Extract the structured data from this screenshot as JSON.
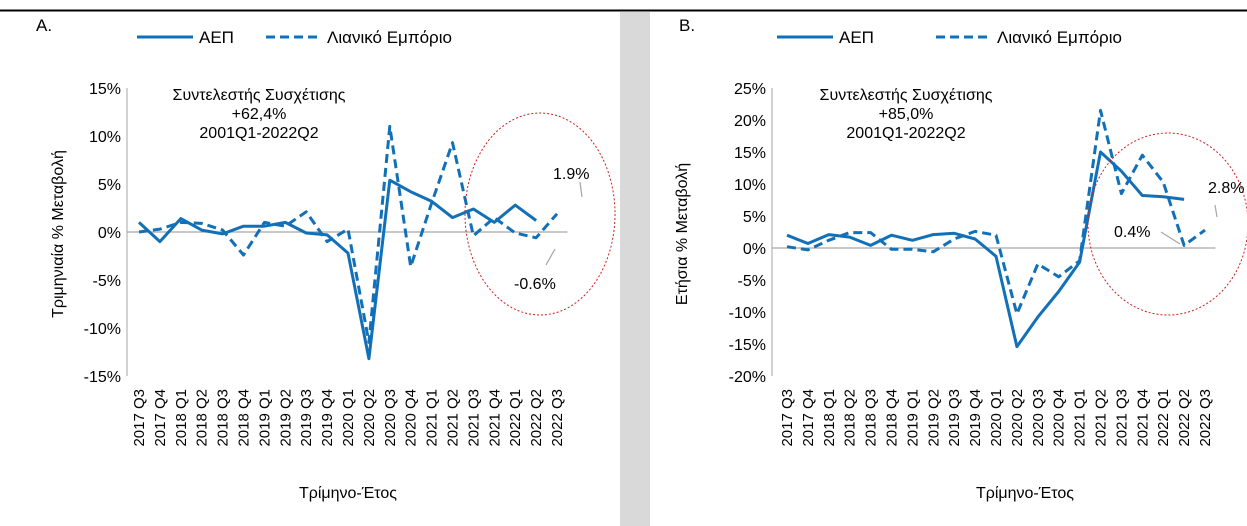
{
  "chart_data": [
    {
      "type": "line",
      "panel_label": "A.",
      "title": "",
      "xlabel": "Τρίμηνο-Έτος",
      "ylabel": "Τριμηνιαία % Μεταβολή",
      "ylim": [
        -15,
        15
      ],
      "yticks": [
        15,
        10,
        5,
        0,
        -5,
        -10,
        -15
      ],
      "ytick_labels": [
        "15%",
        "10%",
        "5%",
        "0%",
        "-5%",
        "-10%",
        "-15%"
      ],
      "categories": [
        "2017 Q3",
        "2017 Q4",
        "2018 Q1",
        "2018 Q2",
        "2018 Q3",
        "2018 Q4",
        "2019 Q1",
        "2019 Q2",
        "2019 Q3",
        "2019 Q4",
        "2020 Q1",
        "2020 Q2",
        "2020 Q3",
        "2020 Q4",
        "2021 Q1",
        "2021 Q2",
        "2021 Q3",
        "2021 Q4",
        "2022 Q1",
        "2022 Q2",
        "2022 Q3"
      ],
      "series": [
        {
          "name": "ΑΕΠ",
          "style": "solid",
          "values": [
            1.0,
            -1.0,
            1.4,
            0.2,
            -0.2,
            0.6,
            0.6,
            1.0,
            -0.1,
            -0.3,
            -2.2,
            -13.2,
            5.4,
            4.2,
            3.2,
            1.5,
            2.4,
            1.0,
            2.8,
            1.2,
            null
          ]
        },
        {
          "name": "Λιανικό Εμπόριο",
          "style": "dashed",
          "values": [
            0.0,
            0.3,
            1.0,
            0.9,
            0.2,
            -2.4,
            1.0,
            0.6,
            2.1,
            -1.0,
            0.3,
            -11.5,
            11.0,
            -3.6,
            3.0,
            9.3,
            -0.4,
            1.5,
            -0.1,
            -0.6,
            1.9
          ]
        }
      ],
      "annotation": {
        "line1": "Συντελεστής Συσχέτισης",
        "line2": "+62,4%",
        "line3": "2001Q1-2022Q2"
      },
      "value_labels": {
        "last": "1.9%",
        "prev": "-0.6%"
      },
      "legend": "top",
      "grid": false
    },
    {
      "type": "line",
      "panel_label": "B.",
      "title": "",
      "xlabel": "Τρίμηνο-Έτος",
      "ylabel": "Ετήσια % Μεταβολή",
      "ylim": [
        -20,
        25
      ],
      "yticks": [
        25,
        20,
        15,
        10,
        5,
        0,
        -5,
        -10,
        -15,
        -20
      ],
      "ytick_labels": [
        "25%",
        "20%",
        "15%",
        "10%",
        "5%",
        "0%",
        "-5%",
        "-10%",
        "-15%",
        "-20%"
      ],
      "categories": [
        "2017 Q3",
        "2017 Q4",
        "2018 Q1",
        "2018 Q2",
        "2018 Q3",
        "2018 Q4",
        "2019 Q1",
        "2019 Q2",
        "2019 Q3",
        "2019 Q4",
        "2020 Q1",
        "2020 Q2",
        "2020 Q3",
        "2020 Q4",
        "2021 Q1",
        "2021 Q2",
        "2021 Q3",
        "2021 Q4",
        "2022 Q1",
        "2022 Q2",
        "2022 Q3"
      ],
      "series": [
        {
          "name": "ΑΕΠ",
          "style": "solid",
          "values": [
            2.0,
            0.7,
            2.1,
            1.7,
            0.4,
            2.0,
            1.2,
            2.1,
            2.3,
            1.4,
            -1.3,
            -15.4,
            -10.8,
            -6.8,
            -2.2,
            15.0,
            12.0,
            8.2,
            8.0,
            7.6,
            null
          ]
        },
        {
          "name": "Λιανικό Εμπόριο",
          "style": "dashed",
          "values": [
            0.2,
            -0.3,
            1.2,
            2.4,
            2.4,
            -0.2,
            -0.2,
            -0.6,
            1.4,
            2.6,
            2.0,
            -10.3,
            -2.5,
            -4.5,
            -2.0,
            21.5,
            8.5,
            14.5,
            10.3,
            0.4,
            2.8
          ]
        }
      ],
      "annotation": {
        "line1": "Συντελεστής Συσχέτισης",
        "line2": "+85,0%",
        "line3": "2001Q1-2022Q2"
      },
      "value_labels": {
        "last": "2.8%",
        "prev": "0.4%"
      },
      "legend": "top",
      "grid": false
    }
  ],
  "colors": {
    "series": "#1170b7",
    "ellipse": "#d01f1f",
    "leader": "#a6a6a6",
    "axis": "#a6a6a6"
  }
}
